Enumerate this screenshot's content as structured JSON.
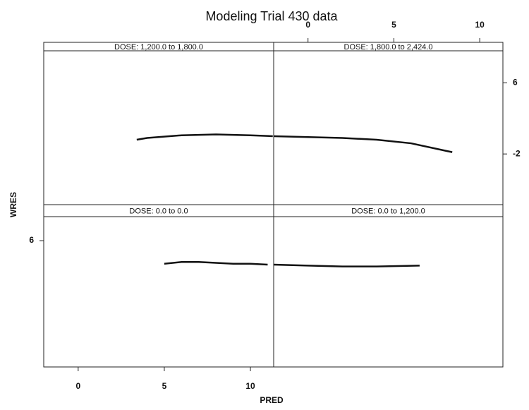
{
  "title": "Modeling Trial 430 data",
  "x_label": "PRED",
  "y_label": "WRES",
  "chart_data": [
    {
      "type": "line",
      "title": "DOSE: 0.0 to 0.0",
      "xlim": [
        -2,
        11.35
      ],
      "ylim": [
        -8.2,
        8.7
      ],
      "xticks": [
        0,
        5,
        10
      ],
      "x_axis_side": "bottom",
      "yticks": [
        6
      ],
      "y_axis_side": "left",
      "color": "#111",
      "x": [
        5,
        6,
        7,
        8,
        9,
        10,
        11
      ],
      "values": [
        3.4,
        3.6,
        3.6,
        3.5,
        3.4,
        3.4,
        3.3
      ]
    },
    {
      "type": "line",
      "title": "DOSE: 0.0 to 1,200.0",
      "xlim": [
        -2,
        11.35
      ],
      "ylim": [
        -8.2,
        8.7
      ],
      "color": "#111",
      "x": [
        -2,
        0,
        2,
        4,
        6.5
      ],
      "values": [
        3.3,
        3.2,
        3.1,
        3.1,
        3.2
      ]
    },
    {
      "type": "line",
      "title": "DOSE: 1,200.0 to 1,800.0",
      "xlim": [
        -2,
        11.35
      ],
      "ylim": [
        -7.7,
        9.6
      ],
      "color": "#111",
      "x": [
        3.4,
        4,
        6,
        8,
        10,
        11.3
      ],
      "values": [
        -0.4,
        -0.2,
        0.1,
        0.2,
        0.1,
        0.0
      ]
    },
    {
      "type": "line",
      "title": "DOSE: 1,800.0 to 2,424.0",
      "xlim": [
        -2,
        11.35
      ],
      "ylim": [
        -7.7,
        9.6
      ],
      "xticks": [
        0,
        5,
        10
      ],
      "x_axis_side": "top",
      "yticks": [
        6,
        -2
      ],
      "y_axis_side": "right",
      "color": "#111",
      "x": [
        -2,
        0,
        2,
        4,
        6,
        8.4
      ],
      "values": [
        0.0,
        -0.1,
        -0.2,
        -0.4,
        -0.8,
        -1.8
      ]
    }
  ]
}
